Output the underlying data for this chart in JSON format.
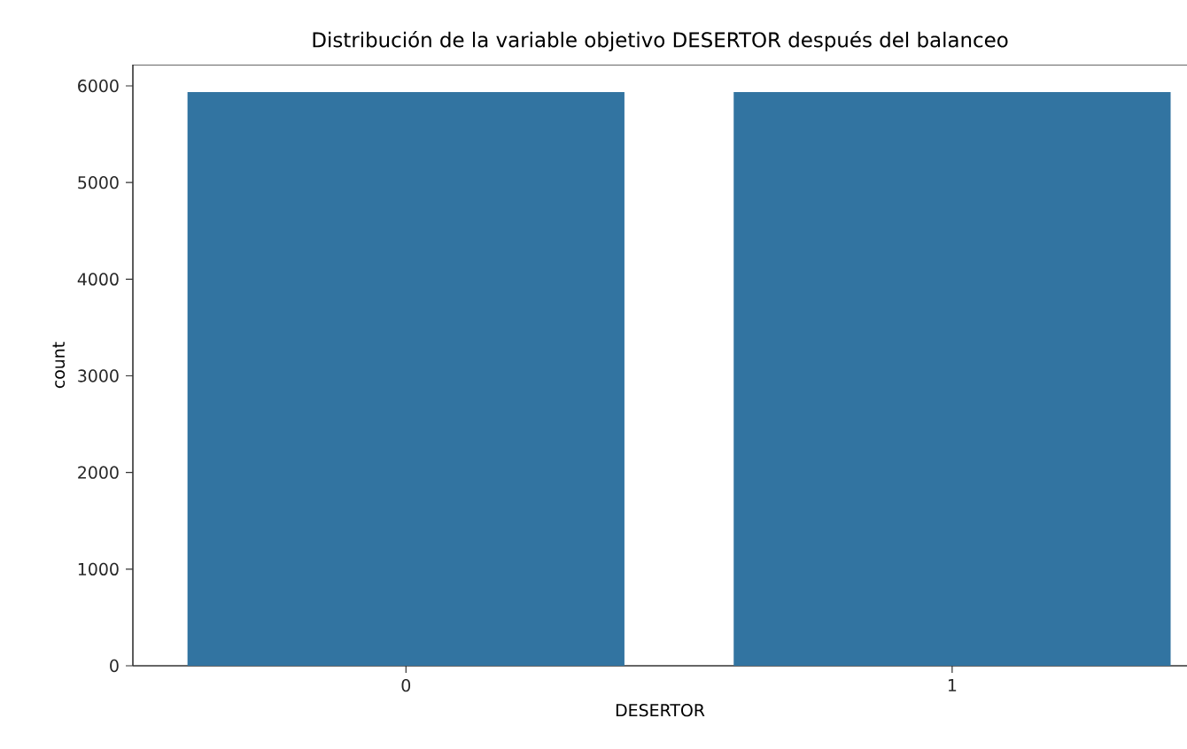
{
  "chart_data": {
    "type": "bar",
    "title": "Distribución de la variable objetivo DESERTOR después del balanceo",
    "xlabel": "DESERTOR",
    "ylabel": "count",
    "categories": [
      "0",
      "1"
    ],
    "values": [
      5935,
      5935
    ],
    "color": "#3274a1",
    "ylim": [
      0,
      6220
    ],
    "yticks": [
      0,
      1000,
      2000,
      3000,
      4000,
      5000,
      6000
    ]
  }
}
